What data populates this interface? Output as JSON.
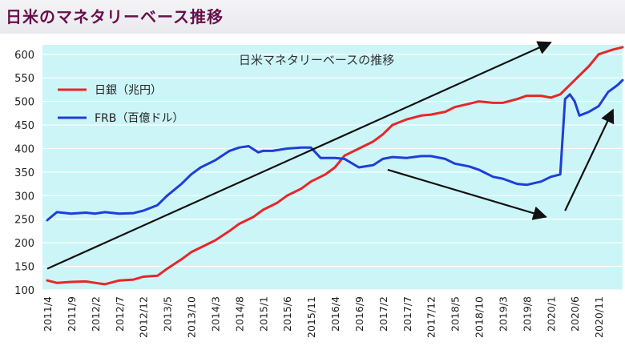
{
  "header": {
    "title": "日米のマネタリーベース推移"
  },
  "chart_data": {
    "type": "line",
    "title": "日米マネタリーベースの推移",
    "xlabel": "",
    "ylabel": "",
    "ylim": [
      100,
      620
    ],
    "yticks": [
      100,
      150,
      200,
      250,
      300,
      350,
      400,
      450,
      500,
      550,
      600
    ],
    "x_tick_labels": [
      "2011/4",
      "2011/9",
      "2012/2",
      "2012/7",
      "2012/12",
      "2013/5",
      "2013/10",
      "2014/3",
      "2014/8",
      "2015/1",
      "2015/6",
      "2015/11",
      "2016/4",
      "2016/9",
      "2017/2",
      "2017/7",
      "2017/12",
      "2018/5",
      "2018/10",
      "2019/3",
      "2019/8",
      "2020/1",
      "2020/6",
      "2020/11"
    ],
    "grid": "horizontal",
    "legend": "top-left",
    "background_color": "#ccf5f8",
    "series": [
      {
        "name": "日銀（兆円）",
        "color": "#e8262a",
        "points": [
          [
            "2011/4",
            120
          ],
          [
            "2011/6",
            115
          ],
          [
            "2011/9",
            117
          ],
          [
            "2011/12",
            118
          ],
          [
            "2012/2",
            115
          ],
          [
            "2012/4",
            112
          ],
          [
            "2012/7",
            120
          ],
          [
            "2012/10",
            122
          ],
          [
            "2012/12",
            128
          ],
          [
            "2013/3",
            130
          ],
          [
            "2013/5",
            145
          ],
          [
            "2013/8",
            165
          ],
          [
            "2013/10",
            180
          ],
          [
            "2014/1",
            195
          ],
          [
            "2014/3",
            205
          ],
          [
            "2014/6",
            225
          ],
          [
            "2014/8",
            240
          ],
          [
            "2014/11",
            255
          ],
          [
            "2015/1",
            270
          ],
          [
            "2015/4",
            285
          ],
          [
            "2015/6",
            300
          ],
          [
            "2015/9",
            315
          ],
          [
            "2015/11",
            330
          ],
          [
            "2016/2",
            345
          ],
          [
            "2016/4",
            360
          ],
          [
            "2016/6",
            385
          ],
          [
            "2016/9",
            400
          ],
          [
            "2016/12",
            415
          ],
          [
            "2017/2",
            430
          ],
          [
            "2017/4",
            450
          ],
          [
            "2017/7",
            462
          ],
          [
            "2017/10",
            470
          ],
          [
            "2017/12",
            472
          ],
          [
            "2018/3",
            478
          ],
          [
            "2018/5",
            488
          ],
          [
            "2018/8",
            495
          ],
          [
            "2018/10",
            500
          ],
          [
            "2019/1",
            497
          ],
          [
            "2019/3",
            497
          ],
          [
            "2019/6",
            505
          ],
          [
            "2019/8",
            512
          ],
          [
            "2019/11",
            512
          ],
          [
            "2020/1",
            508
          ],
          [
            "2020/3",
            515
          ],
          [
            "2020/6",
            545
          ],
          [
            "2020/9",
            575
          ],
          [
            "2020/11",
            600
          ],
          [
            "2021/2",
            610
          ],
          [
            "2021/4",
            615
          ]
        ]
      },
      {
        "name": "FRB（百億ドル）",
        "color": "#1f3ed6",
        "points": [
          [
            "2011/4",
            248
          ],
          [
            "2011/6",
            265
          ],
          [
            "2011/9",
            262
          ],
          [
            "2011/12",
            264
          ],
          [
            "2012/2",
            262
          ],
          [
            "2012/4",
            265
          ],
          [
            "2012/7",
            262
          ],
          [
            "2012/10",
            263
          ],
          [
            "2012/12",
            268
          ],
          [
            "2013/3",
            280
          ],
          [
            "2013/5",
            300
          ],
          [
            "2013/8",
            325
          ],
          [
            "2013/10",
            345
          ],
          [
            "2013/12",
            360
          ],
          [
            "2014/3",
            375
          ],
          [
            "2014/6",
            395
          ],
          [
            "2014/8",
            402
          ],
          [
            "2014/10",
            405
          ],
          [
            "2014/12",
            392
          ],
          [
            "2015/1",
            395
          ],
          [
            "2015/3",
            395
          ],
          [
            "2015/6",
            400
          ],
          [
            "2015/9",
            402
          ],
          [
            "2015/11",
            402
          ],
          [
            "2016/1",
            380
          ],
          [
            "2016/4",
            380
          ],
          [
            "2016/6",
            378
          ],
          [
            "2016/9",
            360
          ],
          [
            "2016/12",
            365
          ],
          [
            "2017/2",
            378
          ],
          [
            "2017/4",
            382
          ],
          [
            "2017/7",
            380
          ],
          [
            "2017/10",
            384
          ],
          [
            "2017/12",
            384
          ],
          [
            "2018/3",
            378
          ],
          [
            "2018/5",
            368
          ],
          [
            "2018/8",
            362
          ],
          [
            "2018/10",
            355
          ],
          [
            "2019/1",
            340
          ],
          [
            "2019/3",
            336
          ],
          [
            "2019/6",
            325
          ],
          [
            "2019/8",
            323
          ],
          [
            "2019/11",
            330
          ],
          [
            "2020/1",
            340
          ],
          [
            "2020/3",
            345
          ],
          [
            "2020/4",
            505
          ],
          [
            "2020/5",
            515
          ],
          [
            "2020/6",
            500
          ],
          [
            "2020/7",
            470
          ],
          [
            "2020/9",
            478
          ],
          [
            "2020/11",
            490
          ],
          [
            "2021/1",
            520
          ],
          [
            "2021/3",
            535
          ],
          [
            "2021/4",
            545
          ]
        ]
      }
    ],
    "annotations": [
      {
        "type": "arrow",
        "from": [
          "2011/4",
          145
        ],
        "to": [
          "2020/1",
          625
        ]
      },
      {
        "type": "arrow",
        "from": [
          "2017/3",
          355
        ],
        "to": [
          "2019/12",
          255
        ]
      },
      {
        "type": "arrow",
        "from": [
          "2020/4",
          268
        ],
        "to": [
          "2021/2",
          482
        ]
      }
    ]
  }
}
